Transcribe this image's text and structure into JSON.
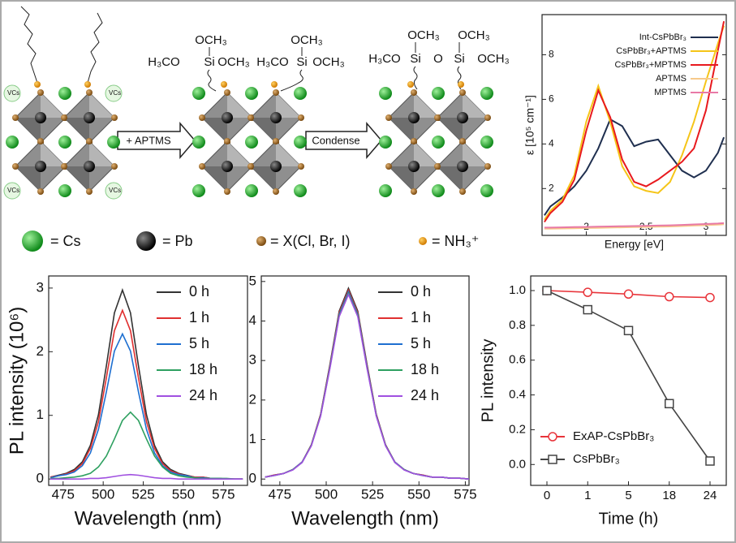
{
  "schematic": {
    "vacancy_labels": [
      "VCs",
      "VCs",
      "VCs",
      "VCs"
    ],
    "arrow_labels": [
      "+ APTMS",
      "Condense"
    ],
    "molecule_1": [
      "OCH₃",
      "H₃CO",
      "Si",
      "OCH₃"
    ],
    "molecule_2": [
      "OCH₃",
      "H₃CO",
      "Si",
      "OCH₃"
    ],
    "molecule_3": [
      "OCH₃",
      "OCH₃",
      "H₃CO",
      "Si",
      "O",
      "Si",
      "OCH₃"
    ],
    "legend": [
      "= Cs",
      "= Pb",
      "= X(Cl, Br, I)",
      "= NH₃⁺"
    ]
  },
  "chart_data": [
    {
      "type": "line",
      "xlabel": "Energy [eV]",
      "ylabel": "ε [10⁵ cm⁻¹]",
      "x": [
        1.65,
        1.7,
        1.8,
        1.9,
        2.0,
        2.1,
        2.2,
        2.3,
        2.4,
        2.5,
        2.6,
        2.7,
        2.8,
        2.9,
        3.0,
        3.1,
        3.15
      ],
      "xlim": [
        1.63,
        3.17
      ],
      "ylim": [
        -0.1,
        9.8
      ],
      "xticks": [
        2,
        2.5,
        3
      ],
      "yticks": [
        2,
        4,
        6,
        8
      ],
      "legend": "upper right",
      "series": [
        {
          "name": "Int-CsPbBr₃",
          "color": "#1f2f4f",
          "values": [
            0.8,
            1.2,
            1.6,
            2.1,
            2.8,
            3.8,
            5.1,
            4.8,
            3.9,
            4.1,
            4.2,
            3.5,
            2.8,
            2.5,
            2.8,
            3.6,
            4.3
          ]
        },
        {
          "name": "CsPbBr₃+APTMS",
          "color": "#f5c518",
          "values": [
            0.6,
            1.0,
            1.5,
            2.6,
            5.0,
            6.6,
            5.0,
            3.0,
            2.1,
            1.9,
            1.8,
            2.3,
            3.5,
            5.0,
            6.8,
            8.5,
            9.3
          ]
        },
        {
          "name": "CsPbBr₃+MPTMS",
          "color": "#e8191e",
          "values": [
            0.5,
            0.9,
            1.4,
            2.4,
            4.6,
            6.4,
            5.2,
            3.3,
            2.3,
            2.1,
            2.4,
            2.8,
            3.2,
            3.8,
            5.5,
            8.2,
            9.5
          ]
        },
        {
          "name": "APTMS",
          "color": "#f7c98a",
          "values": [
            0.2,
            0.2,
            0.21,
            0.22,
            0.23,
            0.24,
            0.25,
            0.26,
            0.27,
            0.28,
            0.29,
            0.3,
            0.32,
            0.34,
            0.36,
            0.38,
            0.4
          ]
        },
        {
          "name": "MPTMS",
          "color": "#e879a6",
          "values": [
            0.25,
            0.25,
            0.26,
            0.27,
            0.28,
            0.29,
            0.3,
            0.31,
            0.32,
            0.33,
            0.34,
            0.35,
            0.37,
            0.39,
            0.41,
            0.43,
            0.45
          ]
        }
      ]
    },
    {
      "type": "line",
      "xlabel": "Wavelength (nm)",
      "ylabel": "PL intensity (10⁶)",
      "x": [
        467,
        472,
        477,
        482,
        487,
        492,
        497,
        502,
        507,
        512,
        517,
        522,
        527,
        532,
        537,
        542,
        547,
        552,
        557,
        562,
        567,
        572,
        577,
        582,
        587
      ],
      "xlim": [
        466,
        590
      ],
      "ylim": [
        -0.1,
        3.19
      ],
      "xticks": [
        475,
        500,
        525,
        550,
        575
      ],
      "yticks": [
        0,
        1,
        2,
        3
      ],
      "legend": "upper right",
      "series": [
        {
          "name": "0 h",
          "color": "#333333",
          "values": [
            0.03,
            0.06,
            0.09,
            0.15,
            0.27,
            0.53,
            1.01,
            1.78,
            2.61,
            2.97,
            2.61,
            1.78,
            1.01,
            0.53,
            0.27,
            0.15,
            0.09,
            0.06,
            0.03,
            0.03,
            0.01,
            0.01,
            0,
            0,
            0
          ]
        },
        {
          "name": "1 h",
          "color": "#e03030",
          "values": [
            0.03,
            0.05,
            0.08,
            0.13,
            0.24,
            0.48,
            0.9,
            1.59,
            2.33,
            2.65,
            2.33,
            1.59,
            0.9,
            0.48,
            0.24,
            0.13,
            0.08,
            0.05,
            0.03,
            0.03,
            0.01,
            0.01,
            0,
            0,
            0
          ]
        },
        {
          "name": "5 h",
          "color": "#1e6fd0",
          "values": [
            0.02,
            0.05,
            0.07,
            0.11,
            0.21,
            0.41,
            0.78,
            1.37,
            2.01,
            2.28,
            2.01,
            1.37,
            0.78,
            0.41,
            0.21,
            0.11,
            0.07,
            0.05,
            0.02,
            0.02,
            0.01,
            0.01,
            0,
            0,
            0
          ]
        },
        {
          "name": "18 h",
          "color": "#2ea060",
          "values": [
            0.01,
            0.01,
            0.02,
            0.03,
            0.05,
            0.09,
            0.19,
            0.36,
            0.63,
            0.92,
            1.05,
            0.92,
            0.63,
            0.36,
            0.19,
            0.09,
            0.05,
            0.03,
            0.02,
            0.01,
            0.01,
            0.01,
            0.01,
            0,
            0
          ]
        },
        {
          "name": "24 h",
          "color": "#a050e0",
          "values": [
            0,
            0,
            0,
            0,
            0,
            0.01,
            0.01,
            0.02,
            0.04,
            0.06,
            0.07,
            0.06,
            0.04,
            0.02,
            0.01,
            0.01,
            0,
            0,
            0,
            0,
            0,
            0,
            0,
            0,
            0
          ]
        }
      ]
    },
    {
      "type": "line",
      "xlabel": "Wavelength (nm)",
      "x": [
        467,
        472,
        477,
        482,
        487,
        492,
        497,
        502,
        507,
        512,
        517,
        522,
        527,
        532,
        537,
        542,
        547,
        552,
        557,
        562,
        567,
        572,
        577,
        582,
        587
      ],
      "xlim": [
        465,
        577
      ],
      "ylim": [
        -0.16,
        5.14
      ],
      "xticks": [
        475,
        500,
        525,
        550,
        575
      ],
      "yticks": [
        0,
        1,
        2,
        3,
        4,
        5
      ],
      "legend": "upper right",
      "series": [
        {
          "name": "0 h",
          "color": "#333333",
          "values": [
            0.05,
            0.1,
            0.14,
            0.24,
            0.43,
            0.87,
            1.64,
            2.9,
            4.25,
            4.83,
            4.25,
            2.9,
            1.64,
            0.87,
            0.43,
            0.24,
            0.14,
            0.1,
            0.05,
            0.05,
            0.02,
            0.02,
            0,
            0,
            0
          ]
        },
        {
          "name": "1 h",
          "color": "#e03030",
          "values": [
            0.05,
            0.1,
            0.14,
            0.24,
            0.43,
            0.86,
            1.63,
            2.87,
            4.21,
            4.78,
            4.21,
            2.87,
            1.63,
            0.86,
            0.43,
            0.24,
            0.14,
            0.1,
            0.05,
            0.05,
            0.02,
            0.02,
            0,
            0,
            0
          ]
        },
        {
          "name": "5 h",
          "color": "#1e6fd0",
          "values": [
            0.05,
            0.09,
            0.14,
            0.24,
            0.43,
            0.85,
            1.61,
            2.84,
            4.17,
            4.74,
            4.17,
            2.84,
            1.61,
            0.85,
            0.43,
            0.24,
            0.14,
            0.09,
            0.05,
            0.05,
            0.02,
            0.02,
            0,
            0,
            0
          ]
        },
        {
          "name": "18 h",
          "color": "#2ea060",
          "values": [
            0.05,
            0.09,
            0.14,
            0.24,
            0.42,
            0.85,
            1.6,
            2.82,
            4.14,
            4.7,
            4.14,
            2.82,
            1.6,
            0.85,
            0.42,
            0.24,
            0.14,
            0.09,
            0.05,
            0.05,
            0.02,
            0.02,
            0,
            0,
            0
          ]
        },
        {
          "name": "24 h",
          "color": "#a050e0",
          "values": [
            0.05,
            0.09,
            0.14,
            0.23,
            0.42,
            0.84,
            1.59,
            2.8,
            4.11,
            4.67,
            4.11,
            2.8,
            1.59,
            0.84,
            0.42,
            0.23,
            0.14,
            0.09,
            0.05,
            0.05,
            0.02,
            0.02,
            0,
            0,
            0
          ]
        }
      ]
    },
    {
      "type": "line",
      "xlabel": "Time (h)",
      "ylabel": "PL intensity",
      "categories": [
        "0",
        "1",
        "5",
        "18",
        "24"
      ],
      "ylim": [
        -0.12,
        1.084
      ],
      "yticks": [
        {
          "value": 0,
          "label": "0.0"
        },
        {
          "value": 0.2,
          "label": "0.2"
        },
        {
          "value": 0.4,
          "label": "0.4"
        },
        {
          "value": 0.6,
          "label": "0.6"
        },
        {
          "value": 0.8,
          "label": "0.8"
        },
        {
          "value": 1,
          "label": "1.0"
        }
      ],
      "legend": "lower left",
      "series": [
        {
          "name": "ExAP-CsPbBr₃",
          "color": "#e8343a",
          "marker": "circle",
          "values": [
            1.0,
            0.99,
            0.98,
            0.965,
            0.96
          ]
        },
        {
          "name": "CsPbBr₃",
          "color": "#444444",
          "marker": "square",
          "values": [
            1.0,
            0.89,
            0.77,
            0.35,
            0.02
          ]
        }
      ]
    }
  ]
}
